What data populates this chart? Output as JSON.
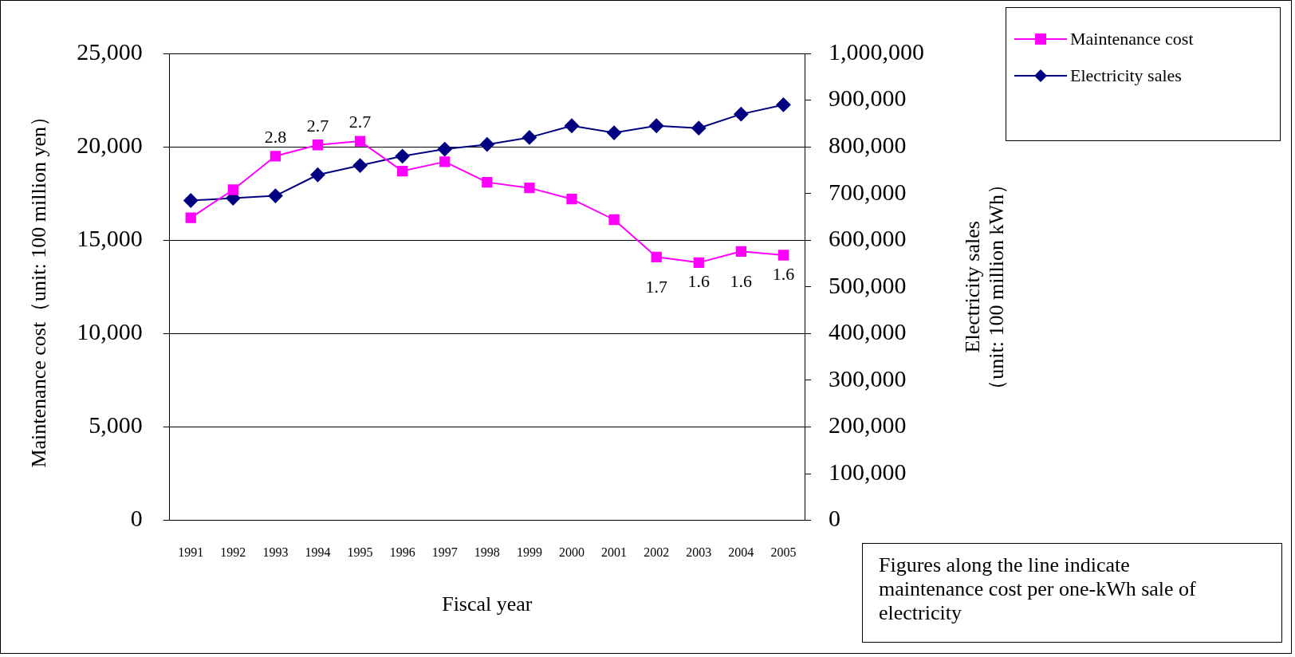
{
  "chart_data": {
    "type": "line",
    "categories": [
      "1991",
      "1992",
      "1993",
      "1994",
      "1995",
      "1996",
      "1997",
      "1998",
      "1999",
      "2000",
      "2001",
      "2002",
      "2003",
      "2004",
      "2005"
    ],
    "xlabel": "Fiscal year",
    "ylabel": "Maintenance cost（unit: 100 million yen）",
    "y2label": "Electricity sales\n（unit: 100 million kWh）",
    "series": [
      {
        "name": "Maintenance cost",
        "color": "#ff00ff",
        "marker": "square",
        "values": [
          16200,
          17700,
          19500,
          20100,
          20300,
          18700,
          19200,
          18100,
          17800,
          17200,
          16100,
          14100,
          13800,
          14400,
          14200
        ]
      },
      {
        "name": "Electricity sales",
        "color": "#000080",
        "marker": "diamond",
        "axis": "y2",
        "values": [
          685000,
          690000,
          695000,
          740000,
          760000,
          780000,
          795000,
          805000,
          820000,
          845000,
          830000,
          845000,
          840000,
          870000,
          890000
        ]
      }
    ],
    "ylim": [
      0,
      25000
    ],
    "yticks": [
      0,
      {
        "value": 5000,
        "label": "5,000"
      },
      {
        "value": 10000,
        "label": "10,000"
      },
      {
        "value": 15000,
        "label": "15,000"
      },
      {
        "value": 20000,
        "label": "20,000"
      },
      {
        "value": 25000,
        "label": "25,000"
      }
    ],
    "y2lim": [
      0,
      1000000
    ],
    "y2ticks": [
      0,
      {
        "value": 100000,
        "label": "100,000"
      },
      {
        "value": 200000,
        "label": "200,000"
      },
      {
        "value": 300000,
        "label": "300,000"
      },
      {
        "value": 400000,
        "label": "400,000"
      },
      {
        "value": 500000,
        "label": "500,000"
      },
      {
        "value": 600000,
        "label": "600,000"
      },
      {
        "value": 700000,
        "label": "700,000"
      },
      {
        "value": 800000,
        "label": "800,000"
      },
      {
        "value": 900000,
        "label": "900,000"
      },
      {
        "value": 1000000,
        "label": "1,000,000"
      }
    ],
    "grid": "y",
    "legend": "top right",
    "annotations": [
      {
        "text": "2.8",
        "x": "1993",
        "y": 19500
      },
      {
        "text": "2.7",
        "x": "1994",
        "y": 20100
      },
      {
        "text": "2.7",
        "x": "1995",
        "y": 20300
      },
      {
        "text": "1.7",
        "x": "2002",
        "y": 14100
      },
      {
        "text": "1.6",
        "x": "2003",
        "y": 13800
      },
      {
        "text": "1.6",
        "x": "2004",
        "y": 14400
      },
      {
        "text": "1.6",
        "x": "2005",
        "y": 14200
      },
      "Figures along the line indicate maintenance cost per one-kWh sale of electricity"
    ]
  }
}
